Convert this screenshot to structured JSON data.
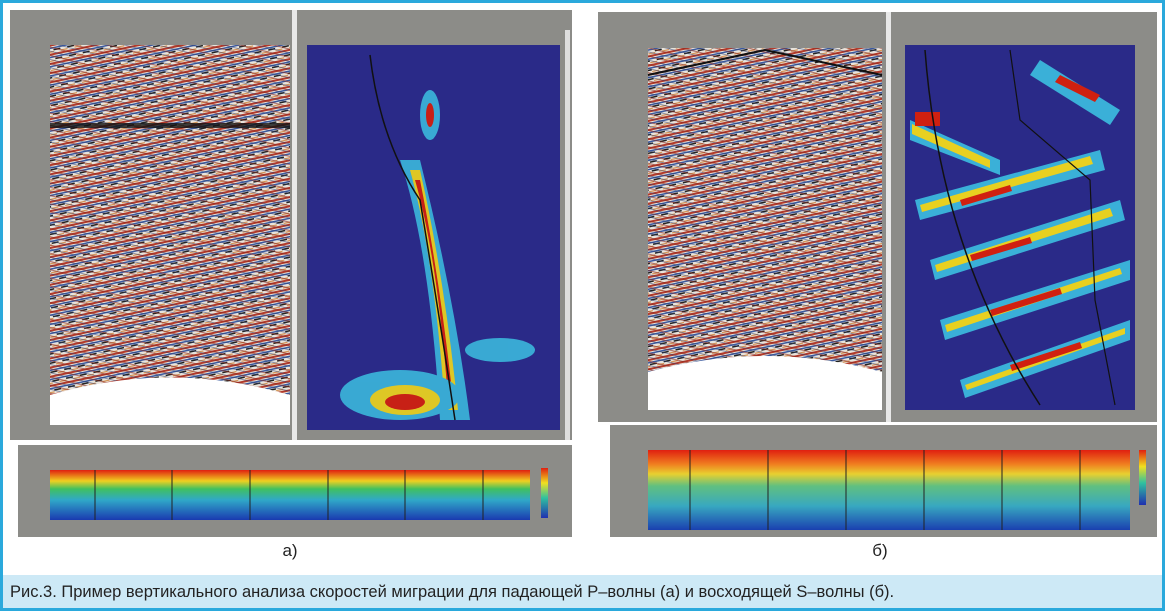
{
  "figure": {
    "panels": [
      {
        "label": "а)"
      },
      {
        "label": "б)"
      }
    ],
    "caption": "Рис.3. Пример вертикального анализа скоростей миграции для падающей  P–волны (а) и восходящей S–волны (б)."
  }
}
